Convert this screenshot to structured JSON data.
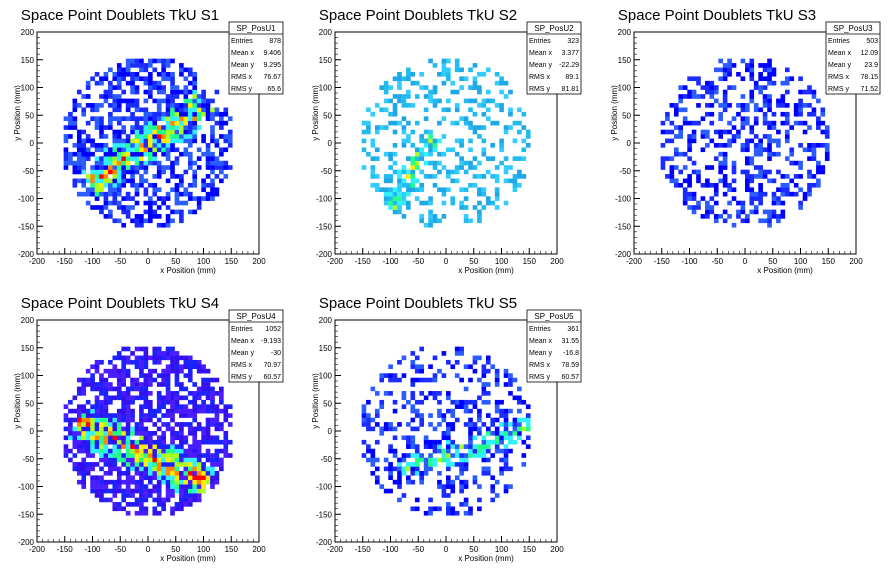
{
  "chart_data": [
    {
      "type": "heatmap",
      "title": "Space Point Doublets TkU S1",
      "xlabel": "x Position (mm)",
      "ylabel": "y Position (mm)",
      "xlim": [
        -200,
        200
      ],
      "ylim": [
        -200,
        200
      ],
      "xticks": [
        "-200",
        "-150",
        "-100",
        "-50",
        "0",
        "50",
        "100",
        "150",
        "200"
      ],
      "yticks": [
        "-200",
        "-150",
        "-100",
        "-50",
        "0",
        "50",
        "100",
        "150",
        "200"
      ],
      "stats": {
        "name": "SP_PosU1",
        "rows": [
          {
            "label": "Entries",
            "value": "878"
          },
          {
            "label": "Mean x",
            "value": "9.406"
          },
          {
            "label": "Mean y",
            "value": "9.295"
          },
          {
            "label": "RMS x",
            "value": "76.67"
          },
          {
            "label": "RMS y",
            "value": "65.6"
          }
        ]
      },
      "pattern": {
        "seed": 11,
        "density": 0.55,
        "band": {
          "angle_deg": 35,
          "cx": 0,
          "cy": 0,
          "width": 45,
          "boost": 0.85
        },
        "palette": "blue"
      }
    },
    {
      "type": "heatmap",
      "title": "Space Point Doublets TkU S2",
      "xlabel": "x Position (mm)",
      "ylabel": "y Position (mm)",
      "xlim": [
        -200,
        200
      ],
      "ylim": [
        -200,
        200
      ],
      "xticks": [
        "-200",
        "-150",
        "-100",
        "-50",
        "0",
        "50",
        "100",
        "150",
        "200"
      ],
      "yticks": [
        "-200",
        "-150",
        "-100",
        "-50",
        "0",
        "50",
        "100",
        "150",
        "200"
      ],
      "stats": {
        "name": "SP_PosU2",
        "rows": [
          {
            "label": "Entries",
            "value": "323"
          },
          {
            "label": "Mean x",
            "value": "3.377"
          },
          {
            "label": "Mean y",
            "value": "-22.29"
          },
          {
            "label": "RMS x",
            "value": "89.1"
          },
          {
            "label": "RMS y",
            "value": "81.81"
          }
        ]
      },
      "pattern": {
        "seed": 23,
        "density": 0.3,
        "band": {
          "angle_deg": 60,
          "cx": -90,
          "cy": -100,
          "width": 30,
          "boost": 0.6
        },
        "palette": "cyan"
      }
    },
    {
      "type": "heatmap",
      "title": "Space Point Doublets TkU S3",
      "xlabel": "x Position (mm)",
      "ylabel": "y Position (mm)",
      "xlim": [
        -200,
        200
      ],
      "ylim": [
        -200,
        200
      ],
      "xticks": [
        "-200",
        "-150",
        "-100",
        "-50",
        "0",
        "50",
        "100",
        "150",
        "200"
      ],
      "yticks": [
        "-200",
        "-150",
        "-100",
        "-50",
        "0",
        "50",
        "100",
        "150",
        "200"
      ],
      "stats": {
        "name": "SP_PosU3",
        "rows": [
          {
            "label": "Entries",
            "value": "503"
          },
          {
            "label": "Mean x",
            "value": "12.09"
          },
          {
            "label": "Mean y",
            "value": "23.9"
          },
          {
            "label": "RMS x",
            "value": "78.15"
          },
          {
            "label": "RMS y",
            "value": "71.52"
          }
        ]
      },
      "pattern": {
        "seed": 37,
        "density": 0.4,
        "band": null,
        "palette": "blue"
      }
    },
    {
      "type": "heatmap",
      "title": "Space Point Doublets TkU S4",
      "xlabel": "x Position (mm)",
      "ylabel": "y Position (mm)",
      "xlim": [
        -200,
        200
      ],
      "ylim": [
        -200,
        200
      ],
      "xticks": [
        "-200",
        "-150",
        "-100",
        "-50",
        "0",
        "50",
        "100",
        "150",
        "200"
      ],
      "yticks": [
        "-200",
        "-150",
        "-100",
        "-50",
        "0",
        "50",
        "100",
        "150",
        "200"
      ],
      "stats": {
        "name": "SP_PosU4",
        "rows": [
          {
            "label": "Entries",
            "value": "1052"
          },
          {
            "label": "Mean x",
            "value": "-9.193"
          },
          {
            "label": "Mean y",
            "value": "-30"
          },
          {
            "label": "RMS x",
            "value": "70.97"
          },
          {
            "label": "RMS y",
            "value": "60.57"
          }
        ]
      },
      "pattern": {
        "seed": 41,
        "density": 0.65,
        "band": {
          "angle_deg": -25,
          "cx": -10,
          "cy": -40,
          "width": 45,
          "boost": 0.95
        },
        "palette": "violet"
      }
    },
    {
      "type": "heatmap",
      "title": "Space Point Doublets TkU S5",
      "xlabel": "x Position (mm)",
      "ylabel": "y Position (mm)",
      "xlim": [
        -200,
        200
      ],
      "ylim": [
        -200,
        200
      ],
      "xticks": [
        "-200",
        "-150",
        "-100",
        "-50",
        "0",
        "50",
        "100",
        "150",
        "200"
      ],
      "yticks": [
        "-200",
        "-150",
        "-100",
        "-50",
        "0",
        "50",
        "100",
        "150",
        "200"
      ],
      "stats": {
        "name": "SP_PosU5",
        "rows": [
          {
            "label": "Entries",
            "value": "361"
          },
          {
            "label": "Mean x",
            "value": "31.55"
          },
          {
            "label": "Mean y",
            "value": "-16.8"
          },
          {
            "label": "RMS x",
            "value": "78.59"
          },
          {
            "label": "RMS y",
            "value": "60.57"
          }
        ]
      },
      "pattern": {
        "seed": 53,
        "density": 0.32,
        "band": {
          "angle_deg": 20,
          "cx": 40,
          "cy": -30,
          "width": 40,
          "boost": 0.5
        },
        "palette": "blue"
      }
    }
  ],
  "colors": {
    "background": "#ffffff",
    "axis": "#000000",
    "stats_border": "#000000",
    "palette_blue": [
      "#1a2bff",
      "#0000ff",
      "#2a5cff"
    ],
    "palette_cyan": [
      "#22bbee",
      "#33ccff",
      "#1fa8e6"
    ],
    "palette_violet": [
      "#4a1cff",
      "#3311ee",
      "#1a22ff"
    ],
    "hot": [
      "#33eeff",
      "#22ff88",
      "#aaff22",
      "#ffee00",
      "#ff8800",
      "#ff0000"
    ]
  }
}
